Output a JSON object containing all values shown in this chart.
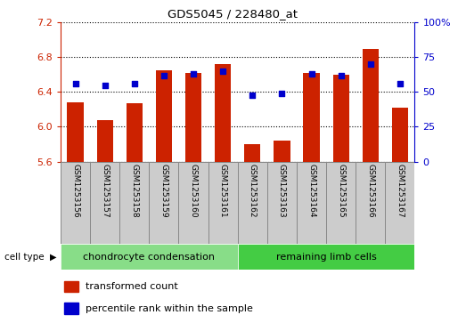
{
  "title": "GDS5045 / 228480_at",
  "samples": [
    "GSM1253156",
    "GSM1253157",
    "GSM1253158",
    "GSM1253159",
    "GSM1253160",
    "GSM1253161",
    "GSM1253162",
    "GSM1253163",
    "GSM1253164",
    "GSM1253165",
    "GSM1253166",
    "GSM1253167"
  ],
  "transformed_counts": [
    6.28,
    6.08,
    6.27,
    6.65,
    6.62,
    6.72,
    5.8,
    5.84,
    6.62,
    6.6,
    6.9,
    6.22
  ],
  "percentile_ranks": [
    56,
    55,
    56,
    62,
    63,
    65,
    48,
    49,
    63,
    62,
    70,
    56
  ],
  "ylim_left": [
    5.6,
    7.2
  ],
  "ylim_right": [
    0,
    100
  ],
  "yticks_left": [
    5.6,
    6.0,
    6.4,
    6.8,
    7.2
  ],
  "yticks_right": [
    0,
    25,
    50,
    75,
    100
  ],
  "bar_color": "#cc2200",
  "dot_color": "#0000cc",
  "group1_label": "chondrocyte condensation",
  "group2_label": "remaining limb cells",
  "group1_color": "#88dd88",
  "group2_color": "#44cc44",
  "cell_type_label": "cell type",
  "legend_bar_label": "transformed count",
  "legend_dot_label": "percentile rank within the sample",
  "bar_bottom": 5.6,
  "label_box_color": "#cccccc",
  "label_box_edge": "#888888"
}
